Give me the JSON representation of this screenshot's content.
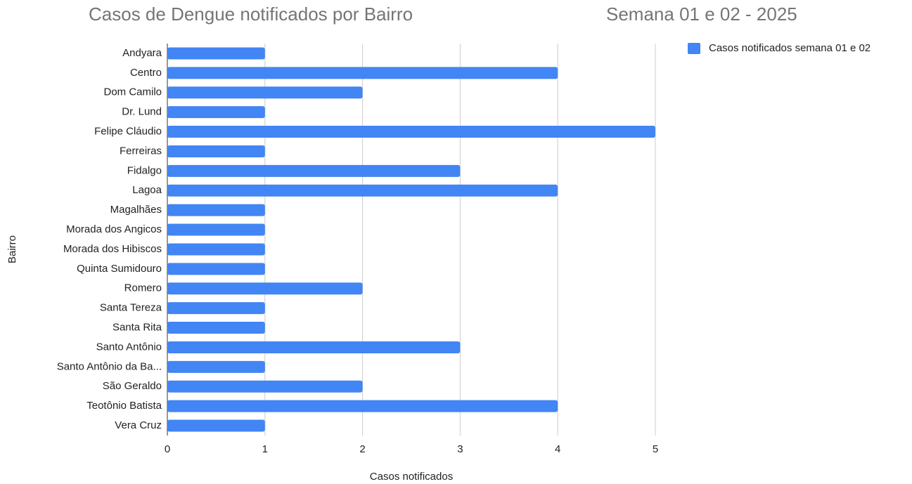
{
  "chart_data": {
    "type": "bar",
    "orientation": "horizontal",
    "title": "Casos de Dengue notificados por Bairro",
    "subtitle": "Semana 01 e 02 - 2025",
    "x_label": "Casos notificados",
    "y_label": "Bairro",
    "categories": [
      "Andyara",
      "Centro",
      "Dom Camilo",
      "Dr. Lund",
      "Felipe Cláudio",
      "Ferreiras",
      "Fidalgo",
      "Lagoa",
      "Magalhães",
      "Morada dos Angicos",
      "Morada dos Hibiscos",
      "Quinta Sumidouro",
      "Romero",
      "Santa Tereza",
      "Santa Rita",
      "Santo Antônio",
      "Santo Antônio da Ba...",
      "São Geraldo",
      "Teotônio Batista",
      "Vera Cruz"
    ],
    "series": [
      {
        "name": "Casos notificados semana 01 e 02",
        "color": "#4285f4",
        "values": [
          1,
          4,
          2,
          1,
          5,
          1,
          3,
          4,
          1,
          1,
          1,
          1,
          2,
          1,
          1,
          3,
          1,
          2,
          4,
          1
        ]
      }
    ],
    "xlim": [
      0,
      5
    ],
    "xticks": [
      0,
      1,
      2,
      3,
      4,
      5
    ],
    "grid": true,
    "legend": "top-right"
  }
}
